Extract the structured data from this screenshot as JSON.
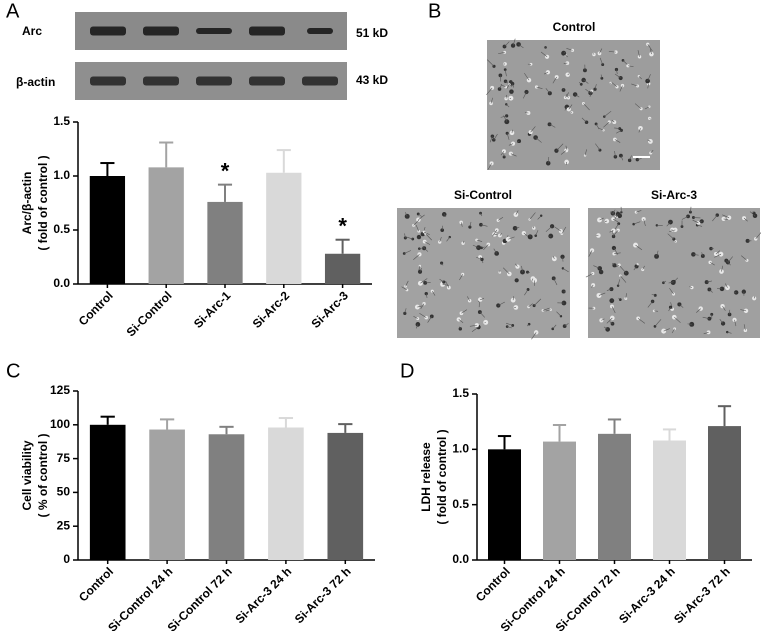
{
  "panel_labels": [
    "A",
    "B",
    "C",
    "D"
  ],
  "blot": {
    "rows": [
      "Arc",
      "β-actin"
    ],
    "sizes": [
      "51 kD",
      "43 kD"
    ]
  },
  "images": {
    "titles": [
      "Control",
      "Si-Control",
      "Si-Arc-3"
    ]
  },
  "chart_data": [
    {
      "type": "bar",
      "ylabel": [
        "Arc/β-actin",
        "( fold of control )"
      ],
      "categories": [
        "Control",
        "Si-Control",
        "Si-Arc-1",
        "Si-Arc-2",
        "Si-Arc-3"
      ],
      "values": [
        1.0,
        1.08,
        0.76,
        1.03,
        0.28
      ],
      "errors": [
        0.12,
        0.23,
        0.16,
        0.21,
        0.13
      ],
      "annotations": [
        null,
        null,
        "*",
        null,
        "*"
      ],
      "colors": [
        "#000000",
        "#a3a3a3",
        "#808080",
        "#d9d9d9",
        "#606060"
      ],
      "ylim": [
        0,
        1.5
      ],
      "yticks": [
        {
          "value": 0,
          "label": "0.0"
        },
        0.5,
        {
          "value": 1,
          "label": "1.0"
        },
        1.5
      ]
    },
    {
      "type": "bar",
      "ylabel": [
        "Cell viability",
        "( % of control )"
      ],
      "categories": [
        "Control",
        "Si-Control 24 h",
        "Si-Control 72 h",
        "Si-Arc-3 24 h",
        "Si-Arc-3 72 h"
      ],
      "values": [
        100,
        96.5,
        93,
        98,
        94
      ],
      "errors": [
        6,
        7.5,
        5.5,
        7,
        6.5
      ],
      "colors": [
        "#000000",
        "#a3a3a3",
        "#808080",
        "#d9d9d9",
        "#606060"
      ],
      "ylim": [
        0,
        125
      ],
      "yticks": [
        0,
        25,
        50,
        75,
        100,
        125
      ]
    },
    {
      "type": "bar",
      "ylabel": [
        "LDH release",
        "( fold of control )"
      ],
      "categories": [
        "Control",
        "Si-Control 24 h",
        "Si-Control 72 h",
        "Si-Arc-3 24 h",
        "Si-Arc-3 72 h"
      ],
      "values": [
        1.0,
        1.07,
        1.14,
        1.08,
        1.21
      ],
      "errors": [
        0.12,
        0.15,
        0.13,
        0.1,
        0.18
      ],
      "colors": [
        "#000000",
        "#a3a3a3",
        "#808080",
        "#d9d9d9",
        "#606060"
      ],
      "ylim": [
        0,
        1.5
      ],
      "yticks": [
        {
          "value": 0,
          "label": "0.0"
        },
        0.5,
        {
          "value": 1,
          "label": "1.0"
        },
        1.5
      ]
    }
  ]
}
